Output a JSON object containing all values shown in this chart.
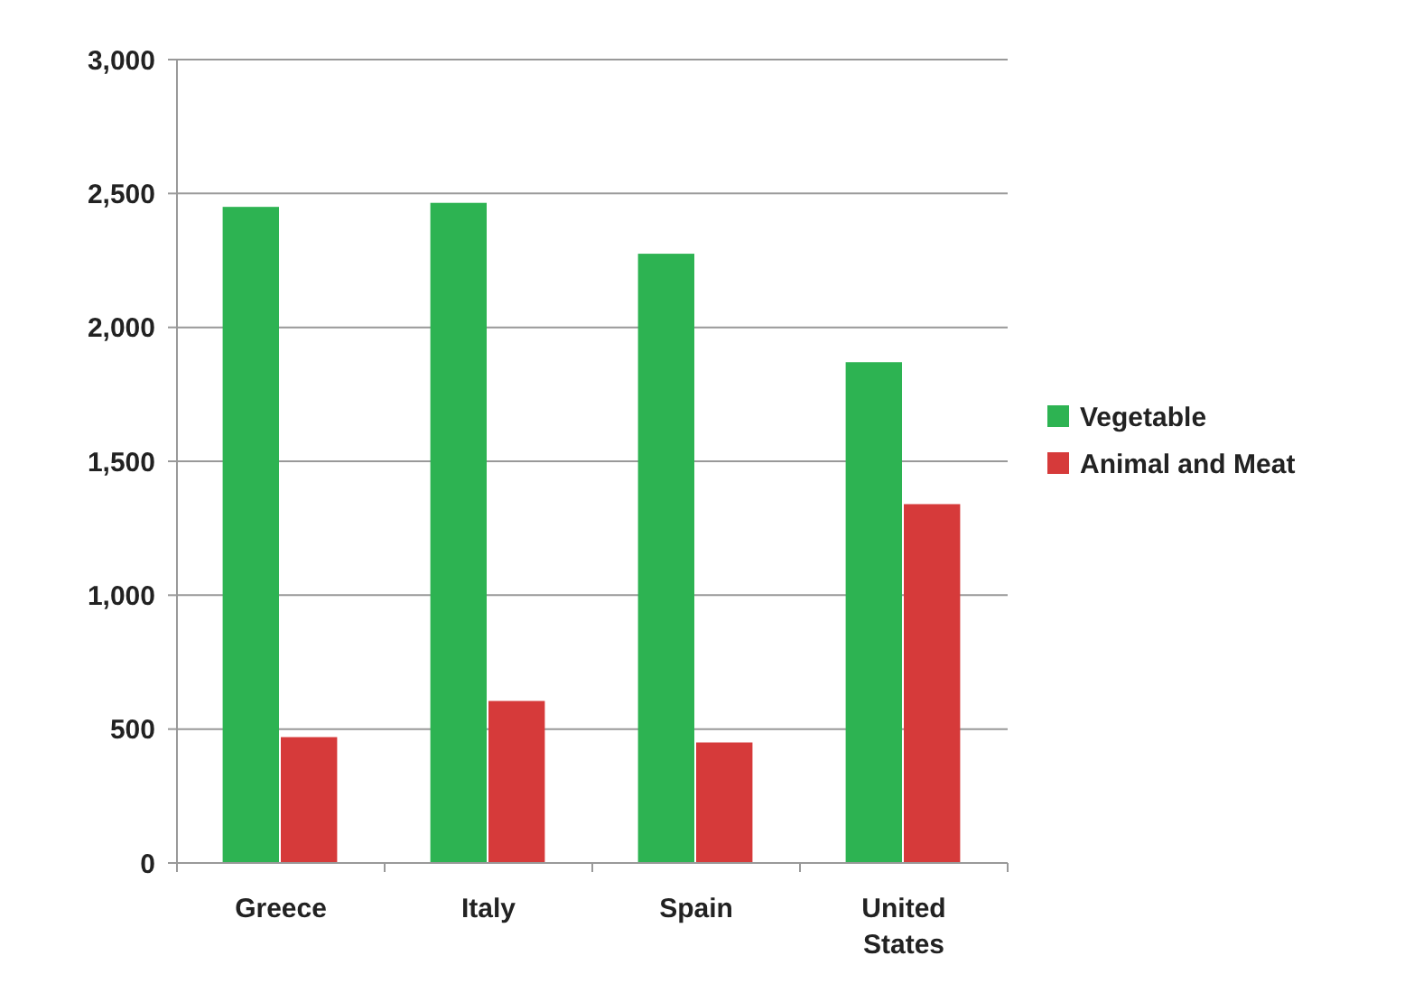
{
  "chart_data": {
    "type": "bar",
    "categories": [
      "Greece",
      "Italy",
      "Spain",
      "United States"
    ],
    "series": [
      {
        "name": "Vegetable",
        "color": "#2db352",
        "values": [
          2450,
          2465,
          2275,
          1870
        ]
      },
      {
        "name": "Animal and Meat",
        "color": "#d63a3a",
        "values": [
          470,
          605,
          450,
          1340
        ]
      }
    ],
    "ylim": [
      0,
      3000
    ],
    "yticks": [
      {
        "value": 0,
        "label": "0"
      },
      {
        "value": 500,
        "label": "500"
      },
      {
        "value": 1000,
        "label": "1,000"
      },
      {
        "value": 1500,
        "label": "1,500"
      },
      {
        "value": 2000,
        "label": "2,000"
      },
      {
        "value": 2500,
        "label": "2,500"
      },
      {
        "value": 3000,
        "label": "3,000"
      }
    ],
    "grid": "y",
    "legend": "right"
  }
}
